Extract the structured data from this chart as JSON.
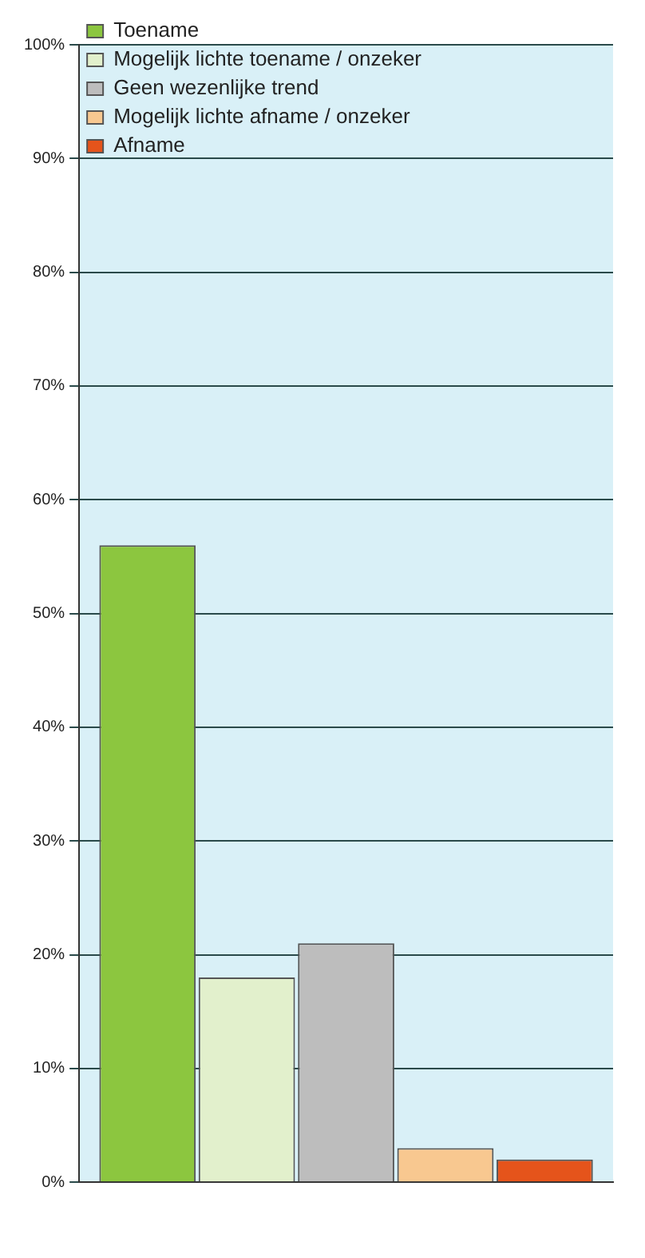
{
  "chart_data": {
    "type": "bar",
    "categories": [
      null
    ],
    "series": [
      {
        "name": "Toename",
        "color": "#8cc63f",
        "values": [
          56
        ]
      },
      {
        "name": "Mogelijk lichte toename / onzeker",
        "color": "#e2f0cc",
        "values": [
          18
        ]
      },
      {
        "name": "Geen wezenlijke trend",
        "color": "#bdbdbd",
        "values": [
          21
        ]
      },
      {
        "name": "Mogelijk lichte afname / onzeker",
        "color": "#f8c890",
        "values": [
          3
        ]
      },
      {
        "name": "Afname",
        "color": "#e5541b",
        "values": [
          2
        ]
      }
    ],
    "ylim": [
      0,
      100
    ],
    "yticks": [
      {
        "value": 0,
        "label": "0%"
      },
      {
        "value": 10,
        "label": "10%"
      },
      {
        "value": 20,
        "label": "20%"
      },
      {
        "value": 30,
        "label": "30%"
      },
      {
        "value": 40,
        "label": "40%"
      },
      {
        "value": 50,
        "label": "50%"
      },
      {
        "value": 60,
        "label": "60%"
      },
      {
        "value": 70,
        "label": "70%"
      },
      {
        "value": 80,
        "label": "80%"
      },
      {
        "value": 90,
        "label": "90%"
      },
      {
        "value": 100,
        "label": "100%"
      }
    ],
    "grid": "y",
    "legend": "top left"
  }
}
